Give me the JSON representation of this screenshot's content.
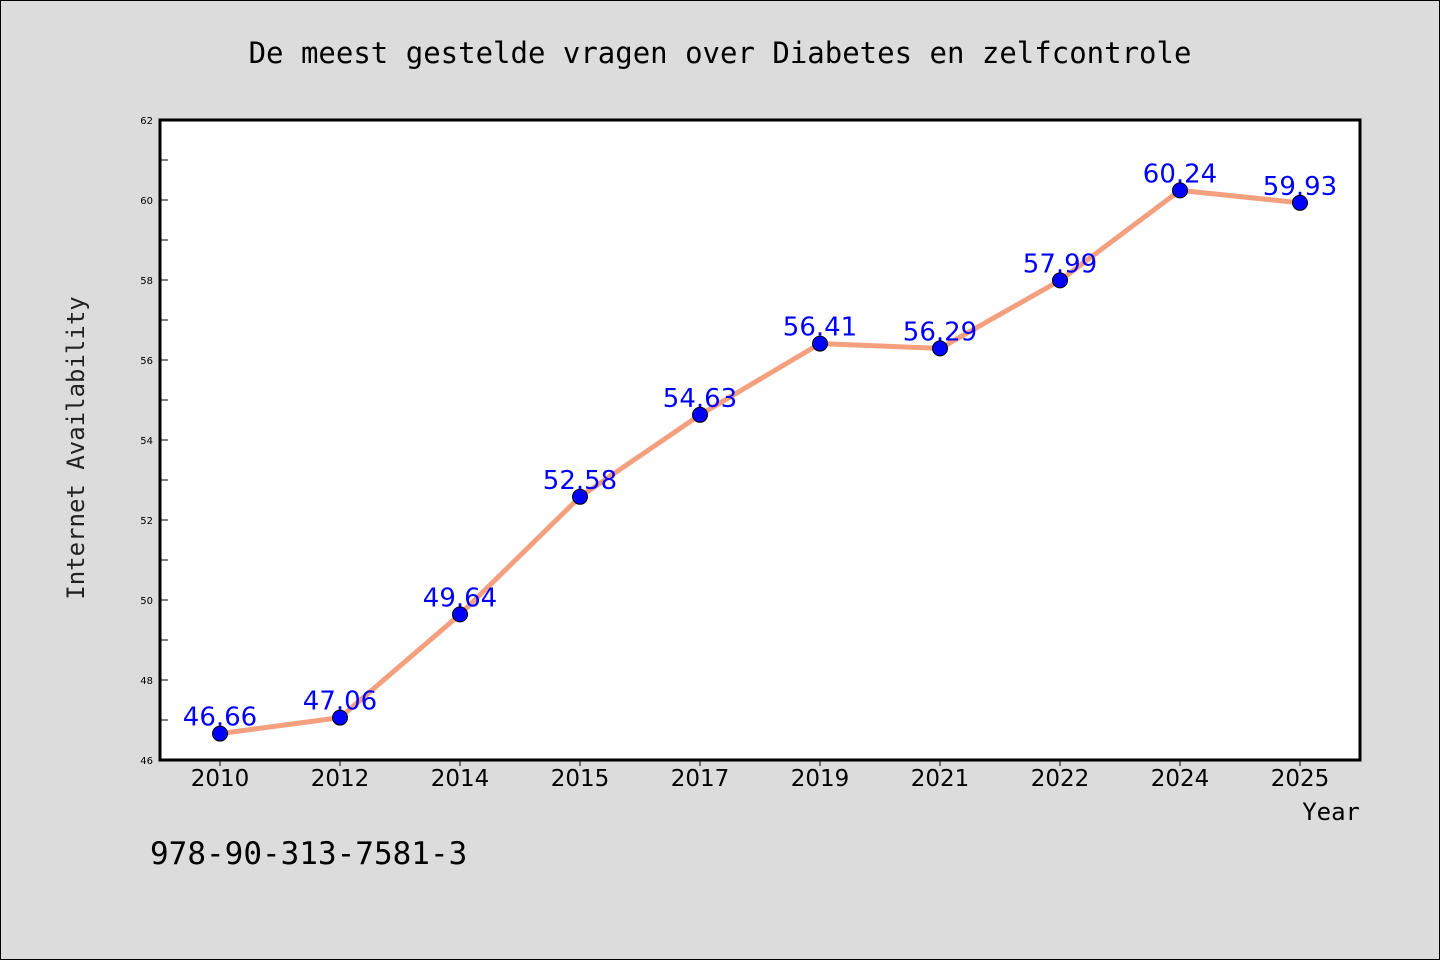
{
  "chart_data": {
    "type": "line",
    "title": "De meest gestelde vragen over Diabetes en zelfcontrole",
    "xlabel": "Year",
    "ylabel": "Internet Availability",
    "categories": [
      "2010",
      "2012",
      "2014",
      "2015",
      "2017",
      "2019",
      "2021",
      "2022",
      "2024",
      "2025"
    ],
    "series": [
      {
        "values": [
          46.66,
          47.06,
          49.64,
          52.58,
          54.63,
          56.41,
          56.29,
          57.99,
          60.24,
          59.93
        ],
        "labels": [
          "46.66",
          "47.06",
          "49.64",
          "52.58",
          "54.63",
          "56.41",
          "56.29",
          "57.99",
          "60.24",
          "59.93"
        ]
      }
    ],
    "ylim": [
      46,
      62
    ],
    "yticks": [
      "46",
      "48",
      "50",
      "52",
      "54",
      "56",
      "58",
      "60",
      "62"
    ],
    "grid": false,
    "colors": {
      "line": "#f4a07f",
      "marker": "#0000ff",
      "label": "#0000ff"
    }
  },
  "footer_text": "978-90-313-7581-3"
}
